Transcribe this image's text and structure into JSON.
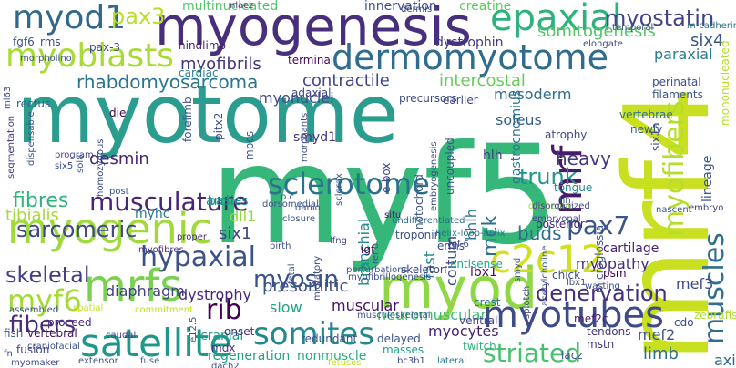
{
  "cloud": {
    "words": [
      {
        "text": "myotome",
        "color": "#2a9d8e"
      },
      {
        "text": "myf5",
        "color": "#35b779"
      },
      {
        "text": "mrf4",
        "color": "#c8e020"
      },
      {
        "text": "myogenesis",
        "color": "#472f7d"
      },
      {
        "text": "myod",
        "color": "#8fd744"
      },
      {
        "text": "myoblasts",
        "color": "#a8db34"
      },
      {
        "text": "dermomyotome",
        "color": "#2f6c8e"
      },
      {
        "text": "somites",
        "color": "#23888e"
      },
      {
        "text": "satellite",
        "color": "#1f988b"
      },
      {
        "text": "myogenic",
        "color": "#9fda3a"
      },
      {
        "text": "mrfs",
        "color": "#7ad151"
      },
      {
        "text": "myotubes",
        "color": "#3e4a89"
      },
      {
        "text": "muscles",
        "color": "#2e6e8e"
      },
      {
        "text": "myofibers",
        "color": "#b5de2b"
      },
      {
        "text": "epaxial",
        "color": "#2db27d"
      },
      {
        "text": "myod1",
        "color": "#31688e"
      },
      {
        "text": "pax3",
        "color": "#b8de29"
      },
      {
        "text": "c2c12",
        "color": "#d0e11c"
      },
      {
        "text": "mrf",
        "color": "#481a6c"
      },
      {
        "text": "musculature",
        "color": "#482576"
      },
      {
        "text": "sclerotome",
        "color": "#2c728e"
      },
      {
        "text": "hypaxial",
        "color": "#3b528b"
      },
      {
        "text": "sarcomeric",
        "color": "#3f4889"
      },
      {
        "text": "fibres",
        "color": "#2fb47c"
      },
      {
        "text": "skeletal",
        "color": "#433e85"
      },
      {
        "text": "striated",
        "color": "#48c16e"
      },
      {
        "text": "denervation",
        "color": "#46307e"
      },
      {
        "text": "pax7",
        "color": "#3a548c"
      },
      {
        "text": "myosin",
        "color": "#3b528b"
      },
      {
        "text": "rib",
        "color": "#440154"
      },
      {
        "text": "myf6",
        "color": "#a2da37"
      },
      {
        "text": "fibers",
        "color": "#472d7b"
      },
      {
        "text": "myostatin",
        "color": "#414487"
      },
      {
        "text": "somitogenesis",
        "color": "#54c568"
      },
      {
        "text": "rhabdomyosarcoma",
        "color": "#2a768e"
      },
      {
        "text": "myofibrils",
        "color": "#46337f"
      },
      {
        "text": "paraxial",
        "color": "#287d8e"
      },
      {
        "text": "six4",
        "color": "#39568c"
      },
      {
        "text": "contractile",
        "color": "#3f4788"
      },
      {
        "text": "intercostal",
        "color": "#67cc5c"
      },
      {
        "text": "mesoderm",
        "color": "#2e6d8e"
      },
      {
        "text": "soleus",
        "color": "#35608d"
      },
      {
        "text": "heavy",
        "color": "#453781"
      },
      {
        "text": "trunk",
        "color": "#1f958b"
      },
      {
        "text": "desmin",
        "color": "#482475"
      },
      {
        "text": "tibialis",
        "color": "#a5db36"
      },
      {
        "text": "diaphragm",
        "color": "#424086"
      },
      {
        "text": "presomitic",
        "color": "#3a538b"
      },
      {
        "text": "slow",
        "color": "#20a386"
      },
      {
        "text": "myopathy",
        "color": "#472c7a"
      },
      {
        "text": "mck",
        "color": "#2d708e"
      },
      {
        "text": "fast",
        "color": "#25848e"
      },
      {
        "text": "buds",
        "color": "#2e6f8e"
      },
      {
        "text": "muscular",
        "color": "#471365"
      },
      {
        "text": "neuromuscular",
        "color": "#3dbc74"
      },
      {
        "text": "mef3",
        "color": "#3e4c8a"
      },
      {
        "text": "mef2",
        "color": "#3a548c"
      },
      {
        "text": "limb",
        "color": "#2d708e"
      },
      {
        "text": "axial",
        "color": "#31688e"
      },
      {
        "text": "regeneration",
        "color": "#1fa088"
      },
      {
        "text": "nonmuscle",
        "color": "#26ad81"
      },
      {
        "text": "myocytes",
        "color": "#482475"
      },
      {
        "text": "six1",
        "color": "#404588"
      },
      {
        "text": "dll1",
        "color": "#90d743"
      },
      {
        "text": "arches",
        "color": "#228d8d"
      },
      {
        "text": "myonuclei",
        "color": "#3d4d8a"
      },
      {
        "text": "smyd1",
        "color": "#46337f"
      },
      {
        "text": "hlh",
        "color": "#443a83"
      },
      {
        "text": "lbx1",
        "color": "#470e61"
      },
      {
        "text": "coitum",
        "color": "#3e4989"
      },
      {
        "text": "bhlh",
        "color": "#2c738e"
      },
      {
        "text": "myhc",
        "color": "#2a778e"
      },
      {
        "text": "branchial",
        "color": "#228c8d"
      },
      {
        "text": "dystrophy",
        "color": "#482979"
      },
      {
        "text": "cranial",
        "color": "#1f9e89"
      },
      {
        "text": "mdx",
        "color": "#46327e"
      },
      {
        "text": "basic",
        "color": "#21908d"
      },
      {
        "text": "multinucleated",
        "color": "#52c569"
      },
      {
        "text": "innervation",
        "color": "#3b528b"
      },
      {
        "text": "creatine",
        "color": "#63cb5f"
      },
      {
        "text": "rms",
        "color": "#3e4a89"
      },
      {
        "text": "fgf6",
        "color": "#3b528b"
      },
      {
        "text": "hindlimb",
        "color": "#482475"
      },
      {
        "text": "dystrophin",
        "color": "#453882"
      },
      {
        "text": "cardiac",
        "color": "#277f8e"
      },
      {
        "text": "terminal",
        "color": "#46075a"
      },
      {
        "text": "adaxial",
        "color": "#404387"
      },
      {
        "text": "rectus",
        "color": "#355f8d"
      },
      {
        "text": "precursors",
        "color": "#3e4a89"
      },
      {
        "text": "earlier",
        "color": "#3f4788"
      },
      {
        "text": "perinatal",
        "color": "#3c508b"
      },
      {
        "text": "filaments",
        "color": "#39558c"
      },
      {
        "text": "vertebrae",
        "color": "#2c718e"
      },
      {
        "text": "die",
        "color": "#440154"
      },
      {
        "text": "gastrocnemius",
        "color": "#2a788e"
      },
      {
        "text": "atrophy",
        "color": "#3e4989"
      },
      {
        "text": "tongue",
        "color": "#24868e"
      },
      {
        "text": "troponin",
        "color": "#3b518b"
      },
      {
        "text": "skeleton",
        "color": "#404588"
      },
      {
        "text": "crest",
        "color": "#2a768e"
      },
      {
        "text": "chick",
        "color": "#3e4a89"
      },
      {
        "text": "mef2c",
        "color": "#48186a"
      },
      {
        "text": "tendons",
        "color": "#453882"
      },
      {
        "text": "mstn",
        "color": "#46337f"
      },
      {
        "text": "fusion",
        "color": "#424086"
      },
      {
        "text": "fish",
        "color": "#3b528b"
      },
      {
        "text": "vertebral",
        "color": "#471164"
      },
      {
        "text": "caudal",
        "color": "#433e85"
      },
      {
        "text": "masses",
        "color": "#1fa287"
      },
      {
        "text": "redundant",
        "color": "#3c4f8a"
      },
      {
        "text": "onset",
        "color": "#472a7a"
      },
      {
        "text": "proceed",
        "color": "#472c7a"
      },
      {
        "text": "ventral",
        "color": "#414487"
      },
      {
        "text": "twitch",
        "color": "#2db27d"
      },
      {
        "text": "extensor",
        "color": "#3b528b"
      },
      {
        "text": "fuse",
        "color": "#31688e"
      },
      {
        "text": "lateral",
        "color": "#2a788e"
      },
      {
        "text": "bc3h1",
        "color": "#3e4a89"
      },
      {
        "text": "delayed",
        "color": "#3b528b"
      },
      {
        "text": "igf",
        "color": "#440154"
      },
      {
        "text": "situ",
        "color": "#481467"
      },
      {
        "text": "birth",
        "color": "#3b528b"
      },
      {
        "text": "proper",
        "color": "#472d7b"
      },
      {
        "text": "post",
        "color": "#3b528b"
      },
      {
        "text": "myofibres",
        "color": "#46327e"
      },
      {
        "text": "erms",
        "color": "#3e4a89"
      },
      {
        "text": "antisense",
        "color": "#22a884"
      },
      {
        "text": "uncoupled",
        "color": "#3b528b"
      },
      {
        "text": "e-box",
        "color": "#414487"
      },
      {
        "text": "posterior",
        "color": "#482475"
      },
      {
        "text": "notochord",
        "color": "#3b528b"
      },
      {
        "text": "undifferentiated",
        "color": "#31688e"
      },
      {
        "text": "duchenne",
        "color": "#95d840"
      },
      {
        "text": "embryonal",
        "color": "#3e4a89"
      },
      {
        "text": "cartilage",
        "color": "#482475"
      },
      {
        "text": "psm",
        "color": "#440154"
      },
      {
        "text": "wasting",
        "color": "#3e4a89"
      },
      {
        "text": "microglossia",
        "color": "#3b528b"
      },
      {
        "text": "embryo",
        "color": "#414487"
      },
      {
        "text": "nascent",
        "color": "#3b528b"
      },
      {
        "text": "zebrafish",
        "color": "#b0dd2f"
      },
      {
        "text": "cdo",
        "color": "#3e4a89"
      },
      {
        "text": "lacz",
        "color": "#3b528b"
      },
      {
        "text": "temporal",
        "color": "#3e4a89"
      },
      {
        "text": "m-cadherin",
        "color": "#2c728e"
      },
      {
        "text": "elongate",
        "color": "#3e4a89"
      },
      {
        "text": "mononucleated",
        "color": "#b5de2b"
      },
      {
        "text": "newly",
        "color": "#3b528b"
      },
      {
        "text": "six1a",
        "color": "#3e4a89"
      },
      {
        "text": "lineage",
        "color": "#3b528b"
      },
      {
        "text": "helix-loop-helix",
        "color": "#2c728e"
      },
      {
        "text": "pax-3",
        "color": "#3e4a89"
      },
      {
        "text": "morpholino",
        "color": "#3b528b"
      },
      {
        "text": "nlacz",
        "color": "#46327e"
      },
      {
        "text": "dermis",
        "color": "#3e4a89"
      },
      {
        "text": "forelimb",
        "color": "#3b528b"
      },
      {
        "text": "pitx2",
        "color": "#3e4a89"
      },
      {
        "text": "mpcs",
        "color": "#3b528b"
      },
      {
        "text": "program",
        "color": "#414487"
      },
      {
        "text": "six5",
        "color": "#3e4a89"
      },
      {
        "text": "sol8",
        "color": "#3b528b"
      },
      {
        "text": "homozygous",
        "color": "#3e4a89"
      },
      {
        "text": "dispensable",
        "color": "#3b528b"
      },
      {
        "text": "segmentation",
        "color": "#46327e"
      },
      {
        "text": "craniofacial",
        "color": "#3b528b"
      },
      {
        "text": "myomaker",
        "color": "#3e4a89"
      },
      {
        "text": "commitment",
        "color": "#c2df23"
      },
      {
        "text": "assembled",
        "color": "#3b528b"
      },
      {
        "text": "spatial",
        "color": "#c2df23"
      },
      {
        "text": "dach2",
        "color": "#3e4a89"
      },
      {
        "text": "fetuses",
        "color": "#c2df23"
      },
      {
        "text": "musculoskeletal",
        "color": "#3b528b"
      },
      {
        "text": "myofibrillogenesis",
        "color": "#3e4a89"
      },
      {
        "text": "fetal",
        "color": "#3b528b"
      },
      {
        "text": "migratory",
        "color": "#3e4a89"
      },
      {
        "text": "e12.5",
        "color": "#3b528b"
      },
      {
        "text": "fn",
        "color": "#3e4a89"
      },
      {
        "text": "p.c",
        "color": "#3b528b"
      },
      {
        "text": "danio",
        "color": "#3e4a89"
      },
      {
        "text": "closure",
        "color": "#3b528b"
      },
      {
        "text": "morphants",
        "color": "#3e4a89"
      },
      {
        "text": "sclerax",
        "color": "#3b528b"
      },
      {
        "text": "embryogenesis",
        "color": "#3e4a89"
      },
      {
        "text": "dorsomedial",
        "color": "#3b528b"
      },
      {
        "text": "ml63",
        "color": "#3e4a89"
      },
      {
        "text": "perturbations",
        "color": "#3b528b"
      },
      {
        "text": "lfng",
        "color": "#3e4a89"
      },
      {
        "text": "rerio",
        "color": "#3b528b"
      },
      {
        "text": "fgf-6",
        "color": "#3e4a89"
      },
      {
        "text": "smyd",
        "color": "#3b528b"
      },
      {
        "text": "splotch",
        "color": "#3e4a89"
      },
      {
        "text": "acetylcholine",
        "color": "#3b528b"
      },
      {
        "text": "disorganized",
        "color": "#3e4a89"
      },
      {
        "text": "hh",
        "color": "#3b528b"
      },
      {
        "text": "lbx1",
        "color": "#3e4a89"
      },
      {
        "text": "m",
        "color": "#3b528b"
      }
    ]
  }
}
